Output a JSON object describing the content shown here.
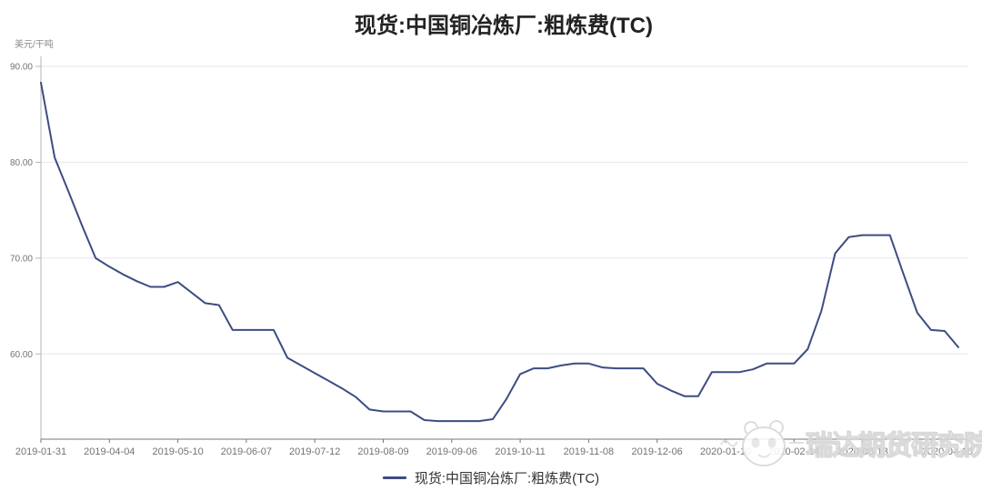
{
  "page": {
    "background": "#ffffff"
  },
  "chart": {
    "title": "现货:中国铜冶炼厂:粗炼费(TC)",
    "unit": "美元/干吨",
    "legend": "现货:中国铜冶炼厂:粗炼费(TC)"
  },
  "watermark": {
    "text": "瑞达期货研究院",
    "logo": "panda-logo"
  },
  "colors": {
    "line": "#3E4C83",
    "grid": "#e4e6ee",
    "axis_bottom": "#777777",
    "axis_left": "#b5b5b5",
    "tick_label": "#737373",
    "title": "#222222",
    "legend_text": "#333333",
    "watermark": "#d6d6d6"
  },
  "chart_data": {
    "type": "line",
    "title": "现货:中国铜冶炼厂:粗炼费(TC)",
    "ylabel": "美元/干吨",
    "legend": [
      "现货:中国铜冶炼厂:粗炼费(TC)"
    ],
    "legend_position": "bottom",
    "grid": true,
    "ylim": [
      51.1,
      90
    ],
    "yticks": [
      90,
      80,
      70,
      60
    ],
    "ytick_labels": [
      "90.00",
      "80.00",
      "70.00",
      "60.00"
    ],
    "x_tick_labels": [
      "2019-01-31",
      "2019-04-04",
      "2019-05-10",
      "2019-06-07",
      "2019-07-12",
      "2019-08-09",
      "2019-09-06",
      "2019-10-11",
      "2019-11-08",
      "2019-12-06",
      "2020-01-10",
      "2020-02-14",
      "2020-03-13",
      "2020-04-10"
    ],
    "x_tick_every": 5,
    "x_frequency": "weekly",
    "series": [
      {
        "name": "现货:中国铜冶炼厂:粗炼费(TC)",
        "values": [
          88.3,
          80.5,
          77.0,
          73.4,
          70.0,
          69.1,
          68.3,
          67.6,
          67.0,
          67.0,
          67.5,
          66.4,
          65.3,
          65.1,
          62.5,
          62.5,
          62.5,
          62.5,
          59.6,
          58.8,
          58.0,
          57.2,
          56.4,
          55.5,
          54.2,
          54.0,
          54.0,
          54.0,
          53.1,
          53.0,
          53.0,
          53.0,
          53.0,
          53.2,
          55.3,
          57.9,
          58.5,
          58.5,
          58.8,
          59.0,
          59.0,
          58.6,
          58.5,
          58.5,
          58.5,
          56.9,
          56.2,
          55.6,
          55.6,
          58.1,
          58.1,
          58.1,
          58.4,
          59.0,
          59.0,
          59.0,
          60.5,
          64.5,
          70.5,
          72.2,
          72.4,
          72.4,
          72.4,
          68.3,
          64.3,
          62.5,
          62.4,
          60.7
        ]
      }
    ]
  }
}
